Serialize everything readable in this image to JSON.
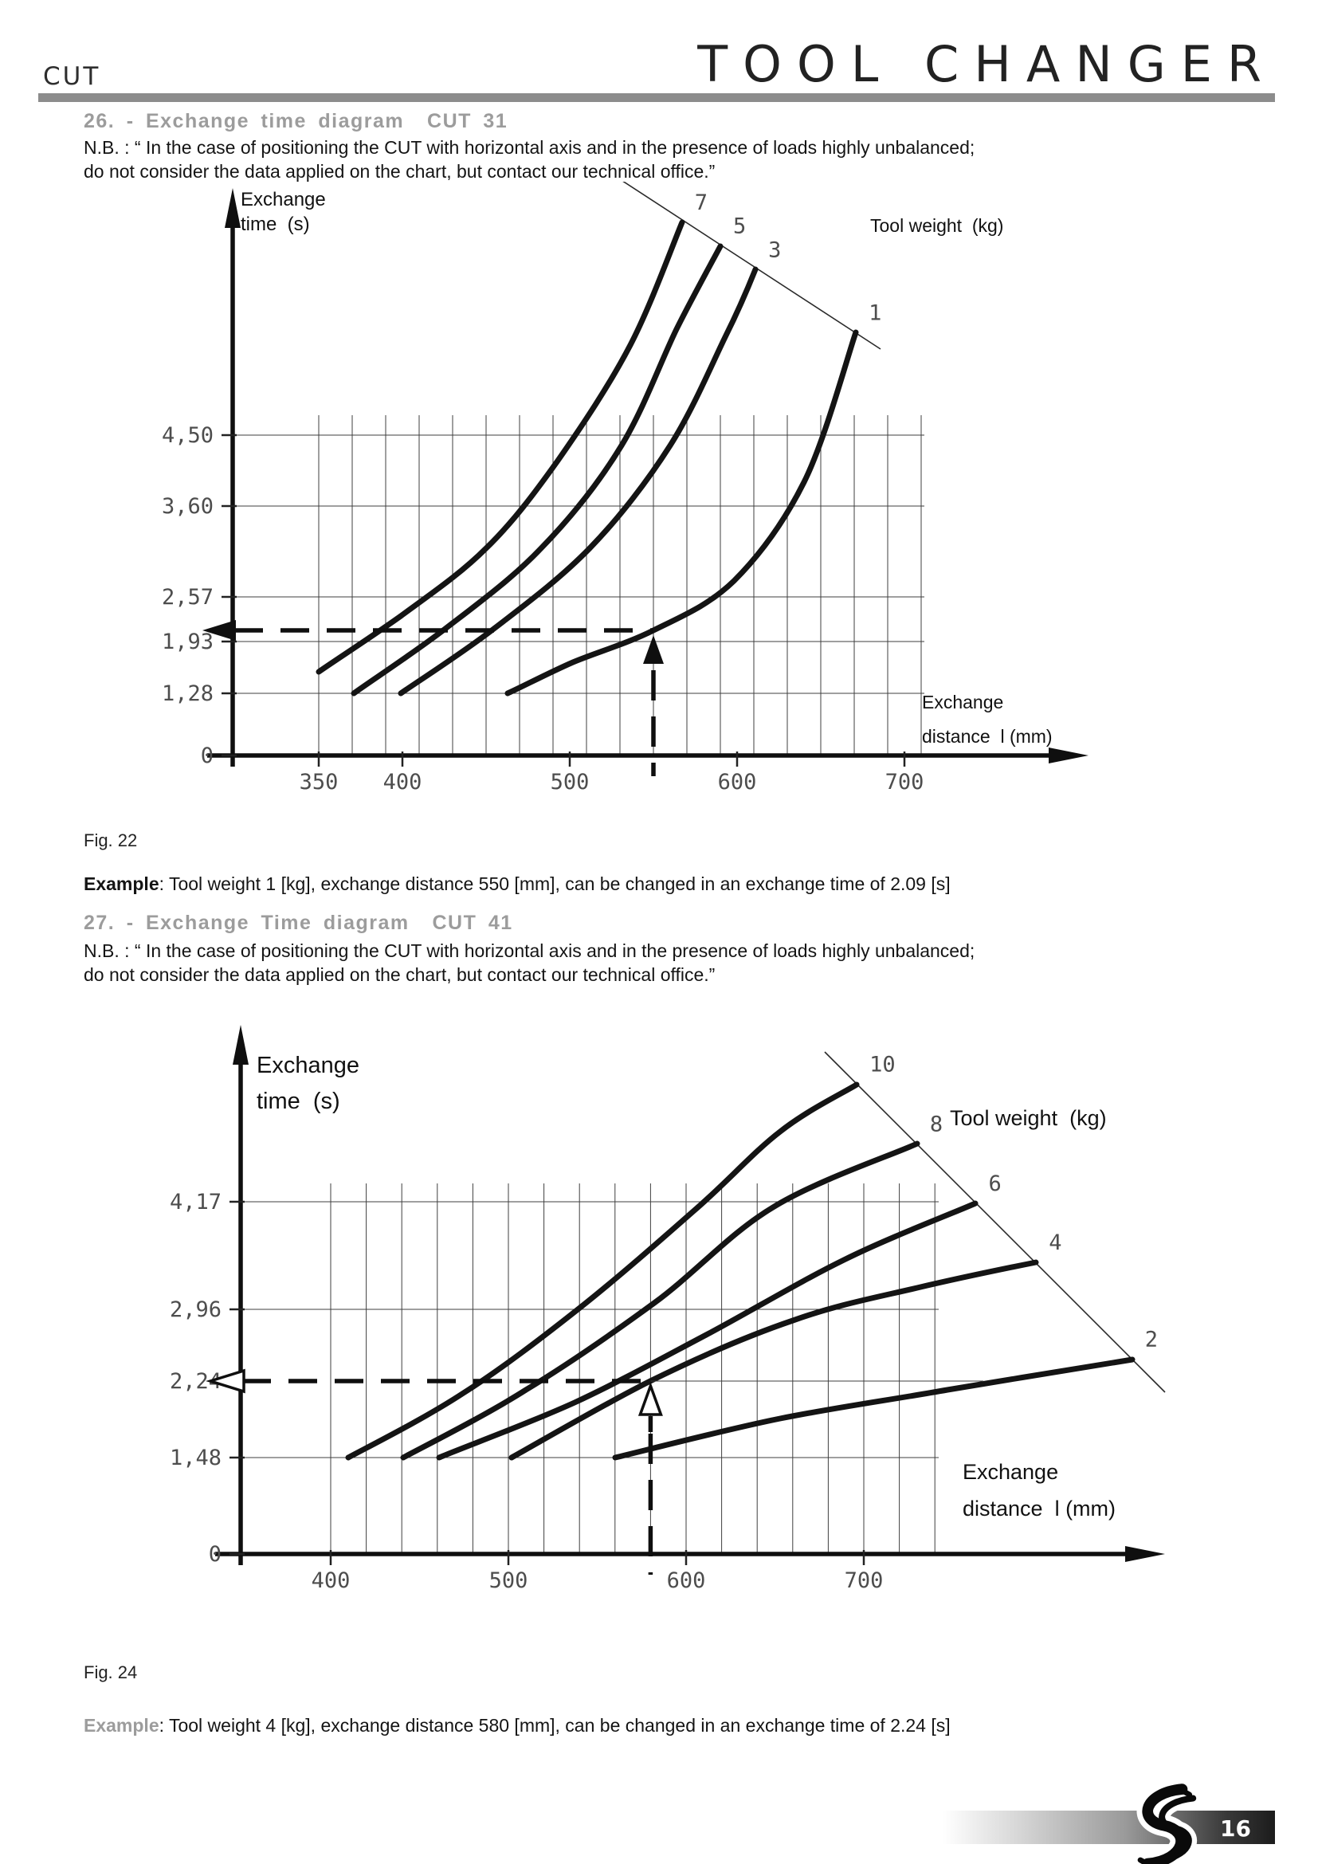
{
  "header": {
    "cut": "CUT",
    "title": "TOOL CHANGER"
  },
  "section26": {
    "heading": "26. - Exchange time diagram  CUT 31",
    "note": "N.B. : “ In the case of positioning the CUT with horizontal axis and in the presence of loads highly unbalanced;\ndo not consider the data applied on the chart, but contact our technical office.”"
  },
  "section27": {
    "heading": "27. - Exchange Time diagram  CUT 41",
    "note": "N.B. : “ In the case of positioning the CUT with horizontal axis and in the presence of loads highly unbalanced;\ndo not consider the data applied on the chart, but contact our technical office.”"
  },
  "chart1": {
    "y_axis_title": "Exchange\ntime  (s)",
    "x_axis_title": "Exchange\ndistance  l (mm)",
    "weight_label": "Tool weight  (kg)",
    "y_ticks": [
      "4,50",
      "3,60",
      "2,57",
      "1,93",
      "1,28",
      "0"
    ],
    "x_ticks": [
      "350",
      "400",
      "500",
      "600",
      "700"
    ]
  },
  "chart2": {
    "y_axis_title": "Exchange\ntime  (s)",
    "x_axis_title": "Exchange\ndistance  l (mm)",
    "weight_label": "Tool weight  (kg)",
    "y_ticks": [
      "4,17",
      "2,96",
      "2,24",
      "1,48",
      "0"
    ],
    "x_ticks": [
      "400",
      "500",
      "600",
      "700"
    ]
  },
  "fig22": {
    "caption": "Fig. 22",
    "example_label": "Example",
    "example_text": ": Tool weight 1 [kg], exchange distance 550 [mm], can be changed in an exchange time of 2.09 [s]"
  },
  "fig24": {
    "caption": "Fig. 24",
    "example_label": "Example",
    "example_text": ": Tool weight 4 [kg], exchange distance 580 [mm], can be changed in an exchange time of 2.24 [s]"
  },
  "footer": {
    "page_number": "16"
  },
  "chart_data": [
    {
      "type": "line",
      "title": "Exchange time diagram CUT 31 (Fig. 22)",
      "xlabel": "Exchange distance l (mm)",
      "ylabel": "Exchange time (s)",
      "legend_label": "Tool weight (kg)",
      "xlim": [
        320,
        720
      ],
      "x_ticks": [
        350,
        400,
        500,
        600,
        700
      ],
      "y_ticks": [
        0,
        1.28,
        1.93,
        2.57,
        3.6,
        4.5
      ],
      "grid": true,
      "series": [
        {
          "name": "7",
          "points": [
            [
              350,
              1.55
            ],
            [
              399,
              2.3
            ],
            [
              450,
              3.12
            ],
            [
              493,
              4.18
            ],
            [
              536,
              5.64
            ],
            [
              567,
              7.2
            ]
          ]
        },
        {
          "name": "5",
          "points": [
            [
              371,
              1.28
            ],
            [
              426,
              2.12
            ],
            [
              483,
              3.12
            ],
            [
              531,
              4.37
            ],
            [
              564,
              5.85
            ],
            [
              590,
              6.9
            ]
          ]
        },
        {
          "name": "3",
          "points": [
            [
              399,
              1.28
            ],
            [
              455,
              2.12
            ],
            [
              512,
              3.12
            ],
            [
              560,
              4.37
            ],
            [
              593,
              5.74
            ],
            [
              611,
              6.6
            ]
          ]
        },
        {
          "name": "1",
          "points": [
            [
              463,
              1.28
            ],
            [
              502,
              1.67
            ],
            [
              550,
              2.09
            ],
            [
              598,
              2.75
            ],
            [
              640,
              3.9
            ],
            [
              671,
              5.8
            ]
          ]
        }
      ],
      "annotation": {
        "distance_mm": 550,
        "time_s": 2.09
      }
    },
    {
      "type": "line",
      "title": "Exchange Time diagram CUT 41 (Fig. 24)",
      "xlabel": "Exchange distance l (mm)",
      "ylabel": "Exchange time (s)",
      "legend_label": "Tool weight (kg)",
      "xlim": [
        360,
        740
      ],
      "x_ticks": [
        400,
        500,
        600,
        700
      ],
      "y_ticks": [
        0,
        1.48,
        2.24,
        2.96,
        4.17
      ],
      "grid": true,
      "series": [
        {
          "name": "10",
          "points": [
            [
              410,
              1.48
            ],
            [
              474,
              2.11
            ],
            [
              541,
              2.99
            ],
            [
              604,
              4.06
            ],
            [
              653,
              4.96
            ],
            [
              696,
              5.49
            ]
          ]
        },
        {
          "name": "8",
          "points": [
            [
              441,
              1.48
            ],
            [
              510,
              2.15
            ],
            [
              582,
              3.03
            ],
            [
              649,
              4.11
            ],
            [
              730,
              4.82
            ]
          ]
        },
        {
          "name": "6",
          "points": [
            [
              461,
              1.48
            ],
            [
              537,
              2.03
            ],
            [
              613,
              2.72
            ],
            [
              689,
              3.52
            ],
            [
              763,
              4.15
            ]
          ]
        },
        {
          "name": "4",
          "points": [
            [
              502,
              1.48
            ],
            [
              580,
              2.24
            ],
            [
              660,
              2.85
            ],
            [
              730,
              3.2
            ],
            [
              797,
              3.49
            ]
          ]
        },
        {
          "name": "2",
          "points": [
            [
              560,
              1.48
            ],
            [
              653,
              1.87
            ],
            [
              747,
              2.15
            ],
            [
              851,
              2.46
            ]
          ]
        }
      ],
      "annotation": {
        "distance_mm": 580,
        "time_s": 2.24
      }
    }
  ]
}
